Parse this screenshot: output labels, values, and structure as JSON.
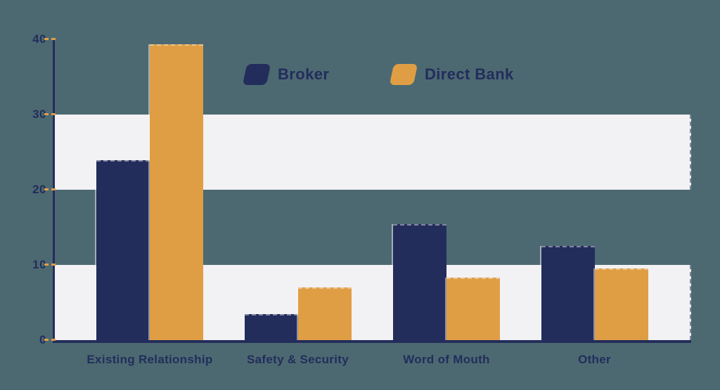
{
  "chart_data": {
    "type": "bar",
    "title": "",
    "xlabel": "",
    "ylabel": "",
    "categories": [
      "Existing Relationship",
      "Safety & Security",
      "Word of Mouth",
      "Other"
    ],
    "series": [
      {
        "name": "Broker",
        "color": "#232D5B",
        "values": [
          23.9,
          3.5,
          15.4,
          12.5
        ]
      },
      {
        "name": "Direct Bank",
        "color": "#E09E44",
        "values": [
          39.3,
          7.0,
          8.3,
          9.5
        ]
      }
    ],
    "ylim": [
      0,
      40
    ],
    "y_ticks": [
      0,
      10,
      20,
      30,
      40
    ],
    "bands": [
      [
        0,
        10
      ],
      [
        20,
        30
      ]
    ],
    "grid": false,
    "legend_position": "top-center"
  },
  "colors": {
    "background": "#4C6972",
    "band": "#F2F1F3",
    "axis": "#232D5B",
    "label_text": "#232D5B",
    "tick_dash": "#E09E44"
  }
}
